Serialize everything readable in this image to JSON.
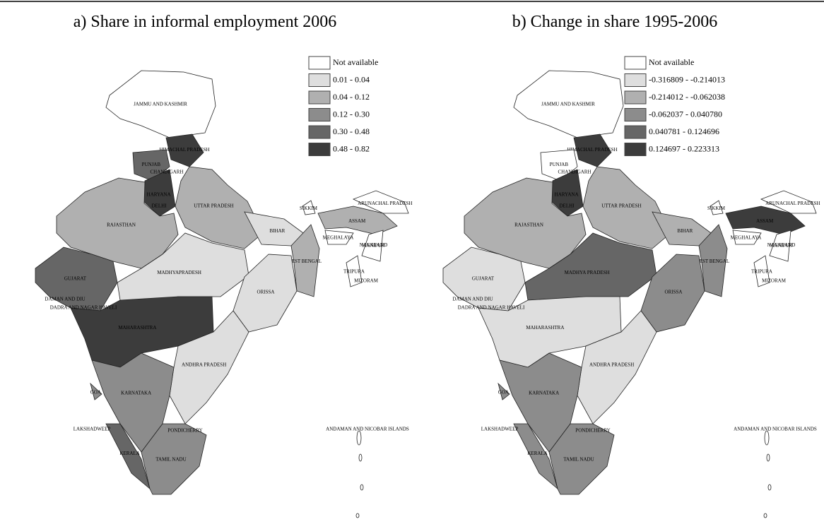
{
  "panels": [
    {
      "title": "a) Share in informal employment 2006",
      "legend": [
        {
          "label": "Not available",
          "color": "#ffffff"
        },
        {
          "label": "0.01 - 0.04",
          "color": "#dedede"
        },
        {
          "label": "0.04 - 0.12",
          "color": "#b0b0b0"
        },
        {
          "label": "0.12 - 0.30",
          "color": "#8c8c8c"
        },
        {
          "label": "0.30 - 0.48",
          "color": "#666666"
        },
        {
          "label": "0.48 - 0.82",
          "color": "#3c3c3c"
        }
      ],
      "regions": [
        {
          "label": "JAMMU AND KASHMIR",
          "color": "#ffffff"
        },
        {
          "label": "HIMACHAL PRADESH",
          "color": "#3c3c3c"
        },
        {
          "label": "PUNJAB",
          "color": "#666666"
        },
        {
          "label": "HARYANA",
          "color": "#3c3c3c"
        },
        {
          "label": "UTTAR PRADESH",
          "color": "#b0b0b0"
        },
        {
          "label": "RAJASTHAN",
          "color": "#b0b0b0"
        },
        {
          "label": "GUJARAT",
          "color": "#666666"
        },
        {
          "label": "MADHYAPRADESH",
          "color": "#dedede"
        },
        {
          "label": "BIHAR",
          "color": "#dedede"
        },
        {
          "label": "WEST BENGAL",
          "color": "#b0b0b0"
        },
        {
          "label": "ORISSA",
          "color": "#dedede"
        },
        {
          "label": "MAHARASHTRA",
          "color": "#3c3c3c"
        },
        {
          "label": "ANDHRA PRADESH",
          "color": "#dedede"
        },
        {
          "label": "KARNATAKA",
          "color": "#8c8c8c"
        },
        {
          "label": "GOA",
          "color": "#8c8c8c"
        },
        {
          "label": "KERALA",
          "color": "#666666"
        },
        {
          "label": "TAMIL NADU",
          "color": "#8c8c8c"
        },
        {
          "label": "SIKKIM",
          "color": "#ffffff"
        },
        {
          "label": "ARUNACHAL PRADESH",
          "color": "#ffffff"
        },
        {
          "label": "ASSAM",
          "color": "#b0b0b0"
        },
        {
          "label": "MEGHALAYA",
          "color": "#ffffff"
        },
        {
          "label": "NAGALAND",
          "color": "#ffffff"
        },
        {
          "label": "TRIPURA",
          "color": "#ffffff"
        }
      ],
      "place_labels": [
        "CHANDIGARH",
        "DELHI",
        "DAMAN AND DIU",
        "DADRA AND NAGAR HAVELI",
        "PONDICHERRY",
        "LAKSHADWEEP",
        "ANDAMAN AND NICOBAR ISLANDS",
        "MANIPUR",
        "MIZORAM"
      ]
    },
    {
      "title": "b) Change in share 1995-2006",
      "legend": [
        {
          "label": "Not available",
          "color": "#ffffff"
        },
        {
          "label": "-0.316809 - -0.214013",
          "color": "#dedede"
        },
        {
          "label": "-0.214012 - -0.062038",
          "color": "#b0b0b0"
        },
        {
          "label": "-0.062037 - 0.040780",
          "color": "#8c8c8c"
        },
        {
          "label": "0.040781 - 0.124696",
          "color": "#666666"
        },
        {
          "label": "0.124697 - 0.223313",
          "color": "#3c3c3c"
        }
      ],
      "regions": [
        {
          "label": "JAMMU AND KASHMIR",
          "color": "#ffffff"
        },
        {
          "label": "HIMACHAL PRADESH",
          "color": "#3c3c3c"
        },
        {
          "label": "PUNJAB",
          "color": "#ffffff"
        },
        {
          "label": "HARYANA",
          "color": "#3c3c3c"
        },
        {
          "label": "UTTAR PRADESH",
          "color": "#b0b0b0"
        },
        {
          "label": "RAJASTHAN",
          "color": "#b0b0b0"
        },
        {
          "label": "GUJARAT",
          "color": "#dedede"
        },
        {
          "label": "MADHYA PRADESH",
          "color": "#666666"
        },
        {
          "label": "BIHAR",
          "color": "#b0b0b0"
        },
        {
          "label": "WEST BENGAL",
          "color": "#8c8c8c"
        },
        {
          "label": "ORISSA",
          "color": "#8c8c8c"
        },
        {
          "label": "MAHARASHTRA",
          "color": "#dedede"
        },
        {
          "label": "ANDHRA PRADESH",
          "color": "#dedede"
        },
        {
          "label": "KARNATAKA",
          "color": "#8c8c8c"
        },
        {
          "label": "GOA",
          "color": "#8c8c8c"
        },
        {
          "label": "KERALA",
          "color": "#8c8c8c"
        },
        {
          "label": "TAMIL NADU",
          "color": "#8c8c8c"
        },
        {
          "label": "SIKKIM",
          "color": "#ffffff"
        },
        {
          "label": "ARUNACHAL PRADESH",
          "color": "#ffffff"
        },
        {
          "label": "ASSAM",
          "color": "#3c3c3c"
        },
        {
          "label": "MEGHALAYA",
          "color": "#ffffff"
        },
        {
          "label": "NAGALAND",
          "color": "#ffffff"
        },
        {
          "label": "TRIPURA",
          "color": "#ffffff"
        }
      ],
      "place_labels": [
        "CHANDIGARH",
        "DELHI",
        "DAMAN AND DIU",
        "DADRA AND NAGAR HAVELI",
        "PONDICHERRY",
        "LAKSHADWEEP",
        "ANDAMAN AND NICOBAR ISLANDS",
        "MANIPUR",
        "MIZORAM"
      ]
    }
  ]
}
